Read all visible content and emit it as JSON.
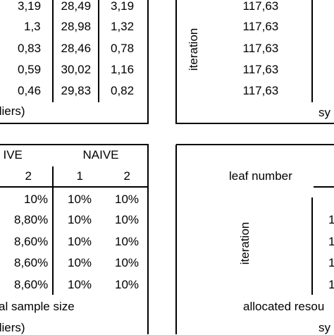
{
  "panels": [
    {
      "rows": [
        [
          "3,19",
          "28,49",
          "3,19"
        ],
        [
          "1,3",
          "28,98",
          "1,32"
        ],
        [
          "0,83",
          "28,46",
          "0,78"
        ],
        [
          "0,59",
          "30,02",
          "1,16"
        ],
        [
          "0,46",
          "29,83",
          "0,82"
        ]
      ],
      "caption": "tliers)"
    },
    {
      "row_label": "iteration",
      "values": [
        "117,63",
        "117,63",
        "117,63",
        "117,63",
        "117,63"
      ],
      "caption": "sy"
    },
    {
      "header": [
        "IVE",
        "NAIVE"
      ],
      "subheader": [
        "2",
        "1",
        "2"
      ],
      "rows": [
        [
          "10%",
          "10%",
          "10%"
        ],
        [
          "8,80%",
          "10%",
          "10%"
        ],
        [
          "8,60%",
          "10%",
          "10%"
        ],
        [
          "8,60%",
          "10%",
          "10%"
        ],
        [
          "8,60%",
          "10%",
          "10%"
        ]
      ],
      "captions": [
        "al sample size",
        "tliers)"
      ]
    },
    {
      "column_label": "leaf number",
      "row_label": "iteration",
      "values": [
        "1",
        "1",
        "1",
        "1"
      ],
      "captions": [
        "allocated resou",
        "sy"
      ]
    }
  ]
}
